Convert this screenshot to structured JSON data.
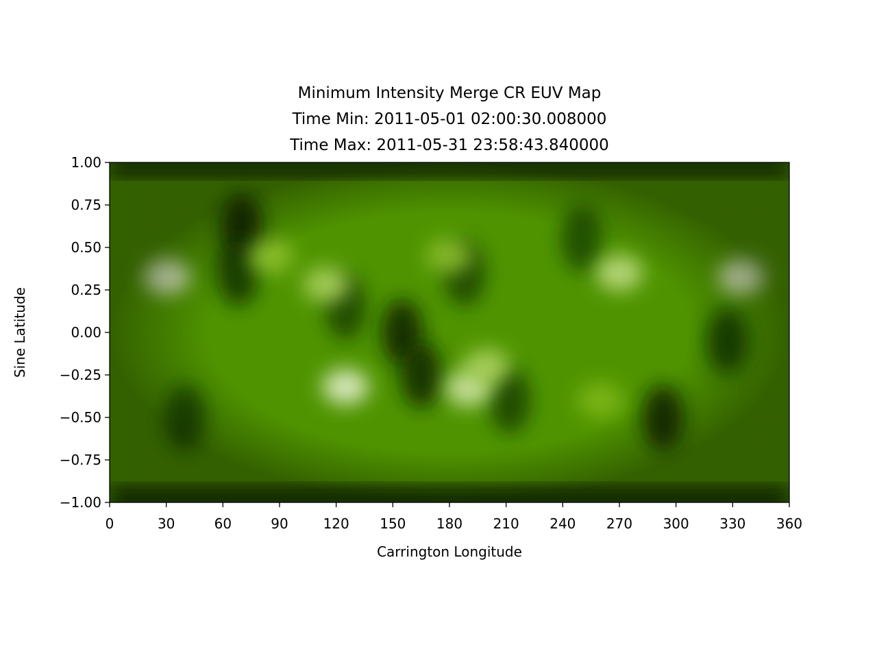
{
  "chart_data": {
    "type": "heatmap",
    "title": [
      "Minimum Intensity Merge CR EUV Map",
      "Time Min: 2011-05-01 02:00:30.008000",
      "Time Max: 2011-05-31 23:58:43.840000"
    ],
    "xlabel": "Carrington Longitude",
    "ylabel": "Sine Latitude",
    "xlim": [
      0,
      360
    ],
    "ylim": [
      -1.0,
      1.0
    ],
    "x_ticks": [
      0,
      30,
      60,
      90,
      120,
      150,
      180,
      210,
      240,
      270,
      300,
      330,
      360
    ],
    "x_tick_labels": [
      "0",
      "30",
      "60",
      "90",
      "120",
      "150",
      "180",
      "210",
      "240",
      "270",
      "300",
      "330",
      "360"
    ],
    "y_ticks": [
      1.0,
      0.75,
      0.5,
      0.25,
      0.0,
      -0.25,
      -0.5,
      -0.75,
      -1.0
    ],
    "y_tick_labels": [
      "1.00",
      "0.75",
      "0.50",
      "0.25",
      "0.00",
      "−0.25",
      "−0.50",
      "−0.75",
      "−1.00"
    ],
    "colormap": [
      "#000000",
      "#0f3300",
      "#2a6b00",
      "#4f9400",
      "#79b60a",
      "#b2d65c",
      "#f2f7e2"
    ],
    "background_level": 0.5,
    "bright_regions": [
      {
        "lon": 30,
        "sinlat": 0.33,
        "level": 1.0
      },
      {
        "lon": 85,
        "sinlat": 0.45,
        "level": 0.75
      },
      {
        "lon": 115,
        "sinlat": 0.28,
        "level": 0.85
      },
      {
        "lon": 125,
        "sinlat": -0.32,
        "level": 1.0
      },
      {
        "lon": 190,
        "sinlat": -0.33,
        "level": 0.95
      },
      {
        "lon": 200,
        "sinlat": -0.2,
        "level": 0.85
      },
      {
        "lon": 270,
        "sinlat": 0.35,
        "level": 0.9
      },
      {
        "lon": 335,
        "sinlat": 0.33,
        "level": 1.0
      },
      {
        "lon": 180,
        "sinlat": 0.45,
        "level": 0.75
      },
      {
        "lon": 260,
        "sinlat": -0.4,
        "level": 0.7
      }
    ],
    "dark_regions": [
      {
        "lon": 70,
        "sinlat": 0.62,
        "level": 0.1
      },
      {
        "lon": 68,
        "sinlat": 0.35,
        "level": 0.15
      },
      {
        "lon": 125,
        "sinlat": 0.15,
        "level": 0.2
      },
      {
        "lon": 155,
        "sinlat": 0.0,
        "level": 0.1
      },
      {
        "lon": 165,
        "sinlat": -0.25,
        "level": 0.12
      },
      {
        "lon": 188,
        "sinlat": 0.35,
        "level": 0.2
      },
      {
        "lon": 212,
        "sinlat": -0.4,
        "level": 0.2
      },
      {
        "lon": 293,
        "sinlat": -0.5,
        "level": 0.1
      },
      {
        "lon": 327,
        "sinlat": -0.05,
        "level": 0.18
      },
      {
        "lon": 250,
        "sinlat": 0.55,
        "level": 0.22
      },
      {
        "lon": 40,
        "sinlat": -0.5,
        "level": 0.22
      }
    ],
    "polar_caps": {
      "north_level": 0.05,
      "south_level": 0.05
    }
  }
}
